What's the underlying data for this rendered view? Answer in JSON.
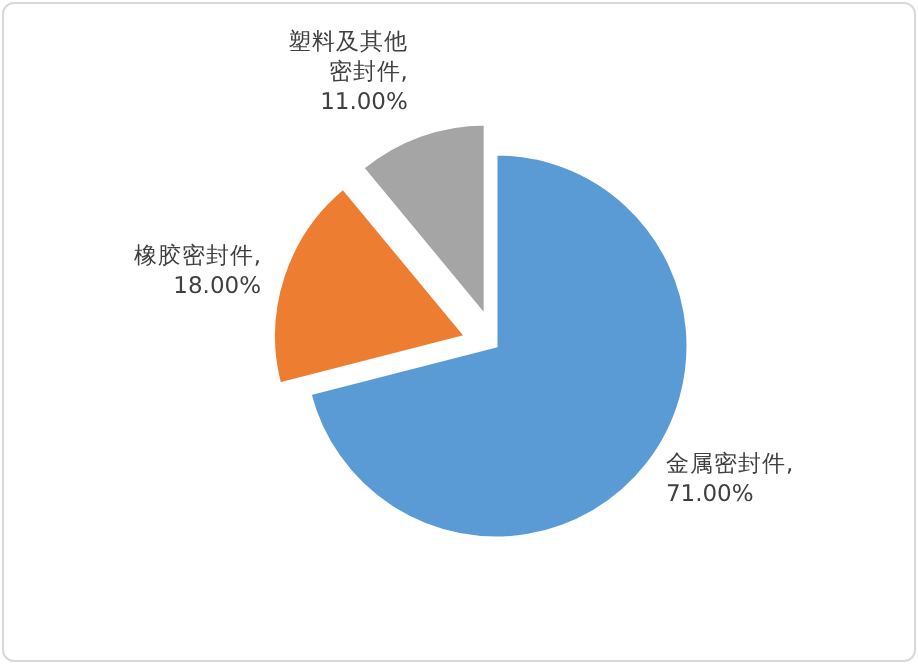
{
  "chart_data": {
    "type": "pie",
    "categories": [
      "金属密封件",
      "橡胶密封件",
      "塑料及其他密封件"
    ],
    "values": [
      71,
      18,
      11
    ],
    "colors": [
      "#5b9bd5",
      "#ed7d31",
      "#a5a5a5"
    ],
    "value_labels": [
      ", 71.00%",
      ", 18.00%",
      ", 11.00%"
    ],
    "legend": false
  }
}
